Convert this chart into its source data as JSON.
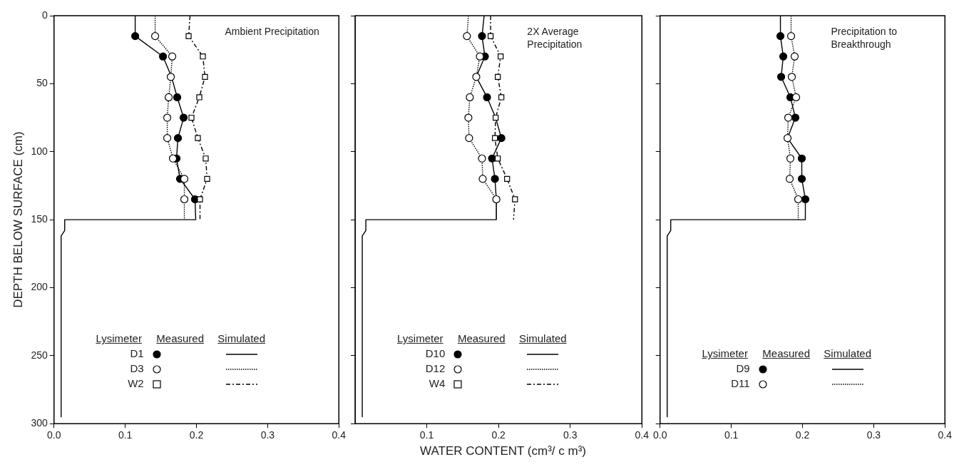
{
  "chart_data": [
    {
      "type": "scatter",
      "title": "Ambient Precipitation",
      "ylabel": "DEPTH BELOW SURFACE (cm)",
      "legend_title": "Lysimeter",
      "annotations": [
        "Measured",
        "Simulated"
      ],
      "legend": "bottom",
      "xlim": [
        0,
        0.4
      ],
      "xticks": [
        {
          "value": 0,
          "label": "0.0"
        },
        0.1,
        0.2,
        0.3,
        0.4
      ],
      "ylim": [
        300,
        0
      ],
      "yticks": [
        0,
        50,
        100,
        150,
        200,
        250,
        300
      ],
      "series": [
        {
          "name": "D1",
          "type": "scatter",
          "marker": "circle",
          "color": "#000000",
          "x": [
            0.114,
            0.153,
            null,
            0.173,
            0.182,
            0.174,
            0.172,
            0.177,
            0.198
          ],
          "values": [
            15,
            30,
            null,
            60,
            75,
            90,
            105,
            120,
            135
          ]
        },
        {
          "name": "D3",
          "type": "scatter",
          "marker": "circle",
          "color": "#ffffff",
          "x": [
            0.142,
            0.166,
            0.164,
            0.161,
            0.159,
            0.159,
            0.167,
            0.183,
            0.183
          ],
          "values": [
            15,
            30,
            45,
            60,
            75,
            90,
            105,
            120,
            135
          ]
        },
        {
          "name": "W2",
          "type": "scatter",
          "marker": "square",
          "color": "#ffffff",
          "x": [
            0.189,
            0.209,
            0.212,
            0.204,
            0.193,
            0.202,
            0.213,
            0.215,
            0.205
          ],
          "values": [
            15,
            30,
            45,
            60,
            75,
            90,
            105,
            120,
            135
          ]
        },
        {
          "type": "line",
          "line_style": "solid",
          "color": "#000000",
          "x": [
            0.114,
            0.114,
            0.153,
            0.165,
            0.173,
            0.182,
            0.174,
            0.172,
            0.177,
            0.198,
            0.199,
            0.015,
            0.015,
            0.01,
            0.01
          ],
          "values": [
            0,
            15,
            30,
            45,
            60,
            75,
            90,
            105,
            120,
            135,
            150,
            150,
            158,
            162,
            295
          ]
        },
        {
          "type": "line",
          "line_style": "dotted",
          "color": "#000000",
          "x": [
            0.142,
            0.142,
            0.166,
            0.164,
            0.161,
            0.159,
            0.159,
            0.167,
            0.183,
            0.183,
            0.183
          ],
          "values": [
            0,
            15,
            30,
            45,
            60,
            75,
            90,
            105,
            120,
            135,
            150
          ]
        },
        {
          "type": "line",
          "line_style": "dashed",
          "color": "#000000",
          "x": [
            0.191,
            0.189,
            0.209,
            0.212,
            0.204,
            0.193,
            0.202,
            0.213,
            0.215,
            0.205,
            0.205
          ],
          "values": [
            0,
            15,
            30,
            45,
            60,
            75,
            90,
            105,
            120,
            135,
            150
          ]
        }
      ]
    },
    {
      "type": "scatter",
      "title": "2X Average Precipitation",
      "xlabel": "WATER CONTENT (cm³/ c m³)",
      "legend_title": "Lysimeter",
      "annotations": [
        "Measured",
        "Simulated"
      ],
      "legend": "bottom",
      "tick_labels": "x",
      "xlim": [
        0,
        0.4
      ],
      "xticks": [
        0.1,
        0.2,
        0.3,
        0.4
      ],
      "ylim": [
        300,
        0
      ],
      "yticks": [
        0,
        50,
        100,
        150,
        200,
        250,
        300
      ],
      "series": [
        {
          "name": "D10",
          "type": "scatter",
          "marker": "circle",
          "color": "#000000",
          "x": [
            0.177,
            0.181,
            null,
            0.184,
            null,
            0.204,
            0.191,
            0.195,
            null
          ],
          "values": [
            15,
            30,
            null,
            60,
            null,
            90,
            105,
            120,
            null
          ]
        },
        {
          "name": "D12",
          "type": "scatter",
          "marker": "circle",
          "color": "#ffffff",
          "x": [
            0.156,
            0.174,
            0.169,
            0.16,
            0.158,
            0.159,
            0.177,
            0.178,
            0.197
          ],
          "values": [
            15,
            30,
            45,
            60,
            75,
            90,
            105,
            120,
            135
          ]
        },
        {
          "name": "W4",
          "type": "scatter",
          "marker": "square",
          "color": "#ffffff",
          "x": [
            0.189,
            0.203,
            0.199,
            0.204,
            0.196,
            0.195,
            0.199,
            0.212,
            0.223
          ],
          "values": [
            15,
            30,
            45,
            60,
            75,
            90,
            105,
            120,
            135
          ]
        },
        {
          "type": "line",
          "line_style": "solid",
          "color": "#000000",
          "x": [
            0.18,
            0.177,
            0.181,
            0.169,
            0.184,
            0.196,
            0.204,
            0.191,
            0.195,
            0.197,
            0.197,
            0.015,
            0.015,
            0.01,
            0.01
          ],
          "values": [
            0,
            15,
            30,
            45,
            60,
            75,
            90,
            105,
            120,
            135,
            150,
            150,
            158,
            162,
            295
          ]
        },
        {
          "type": "line",
          "line_style": "dotted",
          "color": "#000000",
          "x": [
            0.158,
            0.156,
            0.174,
            0.169,
            0.16,
            0.158,
            0.159,
            0.177,
            0.178,
            0.197,
            0.197
          ],
          "values": [
            0,
            15,
            30,
            45,
            60,
            75,
            90,
            105,
            120,
            135,
            150
          ]
        },
        {
          "type": "line",
          "line_style": "dashed",
          "color": "#000000",
          "x": [
            0.189,
            0.189,
            0.203,
            0.199,
            0.204,
            0.196,
            0.195,
            0.199,
            0.212,
            0.223,
            0.221
          ],
          "values": [
            0,
            15,
            30,
            45,
            60,
            75,
            90,
            105,
            120,
            135,
            150
          ]
        }
      ]
    },
    {
      "type": "scatter",
      "title": "Precipitation to Breakthrough",
      "legend_title": "Lysimeter",
      "annotations": [
        "Measured",
        "Simulated"
      ],
      "legend": "bottom",
      "tick_labels": "x",
      "xlim": [
        0,
        0.4
      ],
      "xticks": [
        {
          "value": 0,
          "label": "0.0"
        },
        0.1,
        0.2,
        0.3,
        0.4
      ],
      "ylim": [
        300,
        0
      ],
      "yticks": [
        0,
        50,
        100,
        150,
        200,
        250,
        300
      ],
      "series": [
        {
          "name": "D9",
          "type": "scatter",
          "marker": "circle",
          "color": "#000000",
          "x": [
            0.169,
            0.173,
            0.17,
            0.183,
            0.19,
            null,
            0.199,
            0.199,
            0.204
          ],
          "values": [
            15,
            30,
            45,
            60,
            75,
            null,
            105,
            120,
            135
          ]
        },
        {
          "name": "D11",
          "type": "scatter",
          "marker": "circle",
          "color": "#ffffff",
          "x": [
            0.184,
            0.189,
            0.185,
            0.191,
            0.18,
            0.179,
            0.183,
            0.182,
            0.194
          ],
          "values": [
            15,
            30,
            45,
            60,
            75,
            90,
            105,
            120,
            135
          ]
        },
        {
          "type": "line",
          "line_style": "solid",
          "color": "#000000",
          "x": [
            0.169,
            0.169,
            0.173,
            0.17,
            0.183,
            0.19,
            0.179,
            0.199,
            0.199,
            0.204,
            0.204,
            0.015,
            0.015,
            0.01,
            0.01
          ],
          "values": [
            0,
            15,
            30,
            45,
            60,
            75,
            90,
            105,
            120,
            135,
            150,
            150,
            158,
            162,
            295
          ]
        },
        {
          "type": "line",
          "line_style": "dotted",
          "color": "#000000",
          "x": [
            0.184,
            0.184,
            0.189,
            0.185,
            0.191,
            0.18,
            0.179,
            0.183,
            0.182,
            0.194,
            0.194
          ],
          "values": [
            0,
            15,
            30,
            45,
            60,
            75,
            90,
            105,
            120,
            135,
            150
          ]
        }
      ]
    }
  ]
}
